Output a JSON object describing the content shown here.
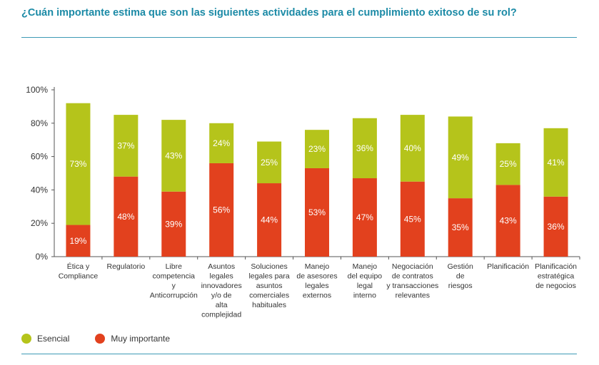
{
  "colors": {
    "title": "#1b8aa6",
    "esencial": "#b5c41b",
    "muy_importante": "#e2411e",
    "axis": "#555555",
    "text": "#333333"
  },
  "chart_data": {
    "type": "bar",
    "stacked": true,
    "title": "¿Cuán importante estima que son las siguientes actividades para el cumplimiento exitoso de su rol?",
    "ylim": [
      0,
      100
    ],
    "yticks": [
      "0%",
      "20%",
      "40%",
      "60%",
      "80%",
      "100%"
    ],
    "categories": [
      [
        "Ética y",
        "Compliance"
      ],
      [
        "Regulatorio"
      ],
      [
        "Libre",
        "competencia",
        "y",
        "Anticorrupción"
      ],
      [
        "Asuntos",
        "legales",
        "innovadores",
        "y/o de",
        "alta",
        "complejidad"
      ],
      [
        "Soluciones",
        "legales para",
        "asuntos",
        "comerciales",
        "habituales"
      ],
      [
        "Manejo",
        "de asesores",
        "legales",
        "externos"
      ],
      [
        "Manejo",
        "del equipo",
        "legal",
        "interno"
      ],
      [
        "Negociación",
        "de contratos",
        "y transacciones",
        "relevantes"
      ],
      [
        "Gestión",
        "de",
        "riesgos"
      ],
      [
        "Planificación"
      ],
      [
        "Planificación",
        "estratégica",
        "de negocios"
      ]
    ],
    "series": [
      {
        "name": "Muy importante",
        "color": "#e2411e",
        "values": [
          19,
          48,
          39,
          56,
          44,
          53,
          47,
          45,
          35,
          43,
          36
        ],
        "labels": [
          "19%",
          "48%",
          "39%",
          "56%",
          "44%",
          "53%",
          "47%",
          "45%",
          "35%",
          "43%",
          "36%"
        ]
      },
      {
        "name": "Esencial",
        "color": "#b5c41b",
        "values": [
          73,
          37,
          43,
          24,
          25,
          23,
          36,
          40,
          49,
          25,
          41
        ],
        "labels": [
          "73%",
          "37%",
          "43%",
          "24%",
          "25%",
          "23%",
          "36%",
          "40%",
          "49%",
          "25%",
          "41%"
        ]
      }
    ],
    "legend": {
      "position": "bottom-left",
      "items": [
        "Esencial",
        "Muy importante"
      ]
    }
  }
}
